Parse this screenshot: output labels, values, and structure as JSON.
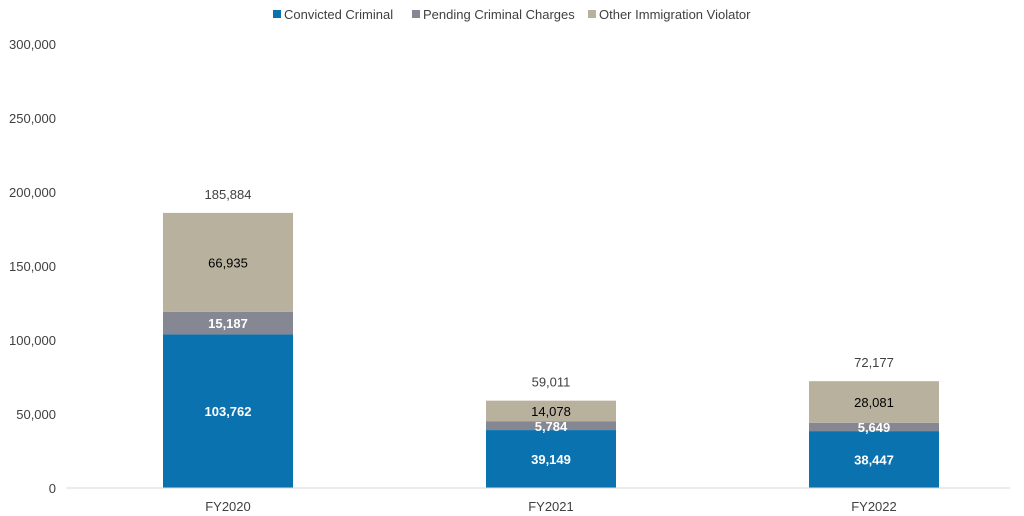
{
  "chart_data": {
    "type": "bar",
    "stacked": true,
    "categories": [
      "FY2020",
      "FY2021",
      "FY2022"
    ],
    "series": [
      {
        "name": "Convicted Criminal",
        "values": [
          103762,
          39149,
          38447
        ],
        "labels": [
          "103,762",
          "39,149",
          "38,447"
        ],
        "color": "#0B72B0"
      },
      {
        "name": "Pending Criminal Charges",
        "values": [
          15187,
          5784,
          5649
        ],
        "labels": [
          "15,187",
          "5,784",
          "5,649"
        ],
        "color": "#858792"
      },
      {
        "name": "Other Immigration Violator",
        "values": [
          66935,
          14078,
          28081
        ],
        "labels": [
          "66,935",
          "14,078",
          "28,081"
        ],
        "color": "#B8B19E"
      }
    ],
    "totals": [
      "185,884",
      "59,011",
      "72,177"
    ],
    "ylim": [
      0,
      300000
    ],
    "yticks": [
      0,
      50000,
      100000,
      150000,
      200000,
      250000,
      300000
    ],
    "ytick_labels": [
      "0",
      "50,000",
      "100,000",
      "150,000",
      "200,000",
      "250,000",
      "300,000"
    ],
    "legend_position": "top",
    "grid": false
  }
}
